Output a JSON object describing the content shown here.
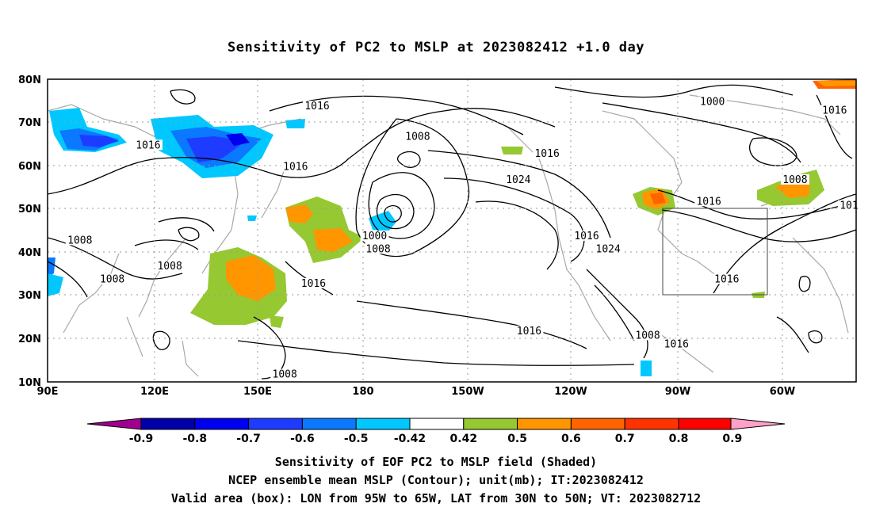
{
  "title": "Sensitivity of PC2 to MSLP at 2023082412 +1.0 day",
  "map": {
    "lon_labels": [
      "90E",
      "120E",
      "150E",
      "180",
      "150W",
      "120W",
      "90W",
      "60W"
    ],
    "lat_labels": [
      "80N",
      "70N",
      "60N",
      "50N",
      "40N",
      "30N",
      "20N",
      "10N"
    ],
    "extent": {
      "lon": [
        "90E",
        "45W"
      ],
      "lat": [
        "10N",
        "80N"
      ]
    },
    "gridlines": "dotted",
    "contour_labels": [
      {
        "text": "1016",
        "lon": 165,
        "lat": 73
      },
      {
        "text": "1016",
        "lon": 118,
        "lat": 64
      },
      {
        "text": "1016",
        "lon": 159,
        "lat": 59
      },
      {
        "text": "1008",
        "lon": 193,
        "lat": 66
      },
      {
        "text": "1016",
        "lon": 229,
        "lat": 62
      },
      {
        "text": "1024",
        "lon": 221,
        "lat": 56
      },
      {
        "text": "1016",
        "lon": 240,
        "lat": 43
      },
      {
        "text": "1024",
        "lon": 246,
        "lat": 40
      },
      {
        "text": "1000",
        "lon": 275,
        "lat": 74
      },
      {
        "text": "1016",
        "lon": 309,
        "lat": 72
      },
      {
        "text": "1008",
        "lon": 298,
        "lat": 56
      },
      {
        "text": "1016",
        "lon": 274,
        "lat": 51
      },
      {
        "text": "101",
        "lon": 313,
        "lat": 50
      },
      {
        "text": "1000",
        "lon": 181,
        "lat": 43
      },
      {
        "text": "1008",
        "lon": 182,
        "lat": 40
      },
      {
        "text": "1008",
        "lon": 99,
        "lat": 42
      },
      {
        "text": "1008",
        "lon": 108,
        "lat": 33
      },
      {
        "text": "1008",
        "lon": 124,
        "lat": 36
      },
      {
        "text": "1016",
        "lon": 164,
        "lat": 32
      },
      {
        "text": "1016",
        "lon": 224,
        "lat": 21
      },
      {
        "text": "1008",
        "lon": 257,
        "lat": 20
      },
      {
        "text": "1016",
        "lon": 265,
        "lat": 18
      },
      {
        "text": "1016",
        "lon": 279,
        "lat": 33
      },
      {
        "text": "1008",
        "lon": 156,
        "lat": 11
      }
    ],
    "valid_box": {
      "lon_west": "95W",
      "lon_east": "65W",
      "lat_south": "30N",
      "lat_north": "50N"
    }
  },
  "colorbar": {
    "labels": [
      "-0.9",
      "-0.8",
      "-0.7",
      "-0.6",
      "-0.5",
      "-0.42",
      "0.42",
      "0.5",
      "0.6",
      "0.7",
      "0.8",
      "0.9"
    ],
    "colors": [
      "#a00090",
      "#0000a8",
      "#0000f0",
      "#1e3cff",
      "#0a78ff",
      "#00c8ff",
      "#ffffff",
      "#96c832",
      "#ff9600",
      "#ff6400",
      "#ff3200",
      "#ff0000",
      "#ffa0c8"
    ]
  },
  "captions": [
    "Sensitivity of EOF PC2 to MSLP field (Shaded)",
    "NCEP ensemble mean MSLP (Contour); unit(mb); IT:2023082412",
    "Valid area (box): LON from 95W to 65W, LAT from 30N to 50N; VT: 2023082712"
  ]
}
